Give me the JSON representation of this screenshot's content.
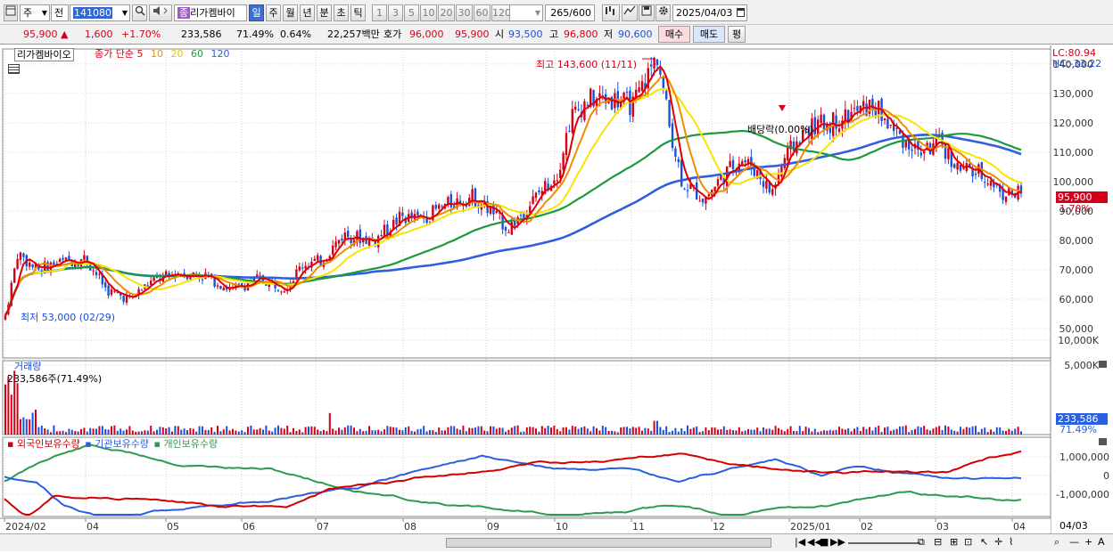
{
  "toolbar": {
    "period": "주",
    "prev": "전",
    "code": "141080",
    "name": "리가켐바이",
    "name_tag": "종",
    "periods": [
      "일",
      "주",
      "월",
      "년",
      "분",
      "초",
      "틱"
    ],
    "active_period": "일",
    "numbers": [
      "1",
      "3",
      "5",
      "10",
      "20",
      "30",
      "60",
      "120"
    ],
    "count": "265",
    "count_max": "/600",
    "date": "2025/04/03"
  },
  "quote": {
    "price": "95,900",
    "arrow": "▲",
    "change": "1,600",
    "change_pct": "+1.70%",
    "volume": "233,586",
    "volume_ratio": "71.49%",
    "turnover": "0.64%",
    "amount": "22,257백만",
    "bid_label": "호가",
    "bid": "96,000",
    "ask": "95,900",
    "open_label": "시",
    "open": "93,500",
    "high_label": "고",
    "high": "96,800",
    "low_label": "저",
    "low": "90,600",
    "buy": "매수",
    "sell": "매도",
    "eval": "평"
  },
  "main_panel": {
    "title": "리가켐바이오",
    "ma_label": "종가 단순",
    "ma_periods": [
      "5",
      "10",
      "20",
      "60",
      "120"
    ],
    "high_note": "최고 143,600 (11/11)",
    "low_note": "최저 53,000 (02/29)",
    "dividend_note": "배당락(0.00%)",
    "lc": "LC:80.94",
    "hc": "HC:-33.22",
    "price_tag": "95,900",
    "pct_tag": "1.70%",
    "yticks": [
      "140,000",
      "130,000",
      "120,000",
      "110,000",
      "100,000",
      "90,000",
      "80,000",
      "70,000",
      "60,000",
      "50,000"
    ]
  },
  "volume_panel": {
    "title": "거래량",
    "value": "233,586주(71.49%)",
    "yticks": [
      "10,000K",
      "5,000K"
    ],
    "tag": "233,586",
    "tag_pct": "71.49%"
  },
  "holdings_panel": {
    "legend": [
      "외국인보유수량",
      "기관보유수량",
      "개인보유수량"
    ],
    "yticks": [
      "1,000,000",
      "0",
      "-1,000,000"
    ]
  },
  "xaxis": {
    "labels": [
      "2024/02",
      "04",
      "05",
      "06",
      "07",
      "08",
      "09",
      "10",
      "11",
      "12",
      "2025/01",
      "02",
      "03",
      "04"
    ],
    "right_label": "04/03"
  },
  "colors": {
    "up": "#d4001a",
    "down": "#1a4fd8",
    "ma5": "#e00000",
    "ma10": "#f08c00",
    "ma20": "#f5e600",
    "ma60": "#1a9a3c",
    "ma120": "#2f5fe0",
    "foreign": "#d40000",
    "institution": "#2a5fe0",
    "individual": "#2e9a50"
  },
  "icons": [
    "chart-type-icon",
    "dropdown-icon",
    "search-icon",
    "speaker-icon",
    "calendar-icon",
    "gear-icon",
    "save-icon",
    "draw-icon"
  ]
}
